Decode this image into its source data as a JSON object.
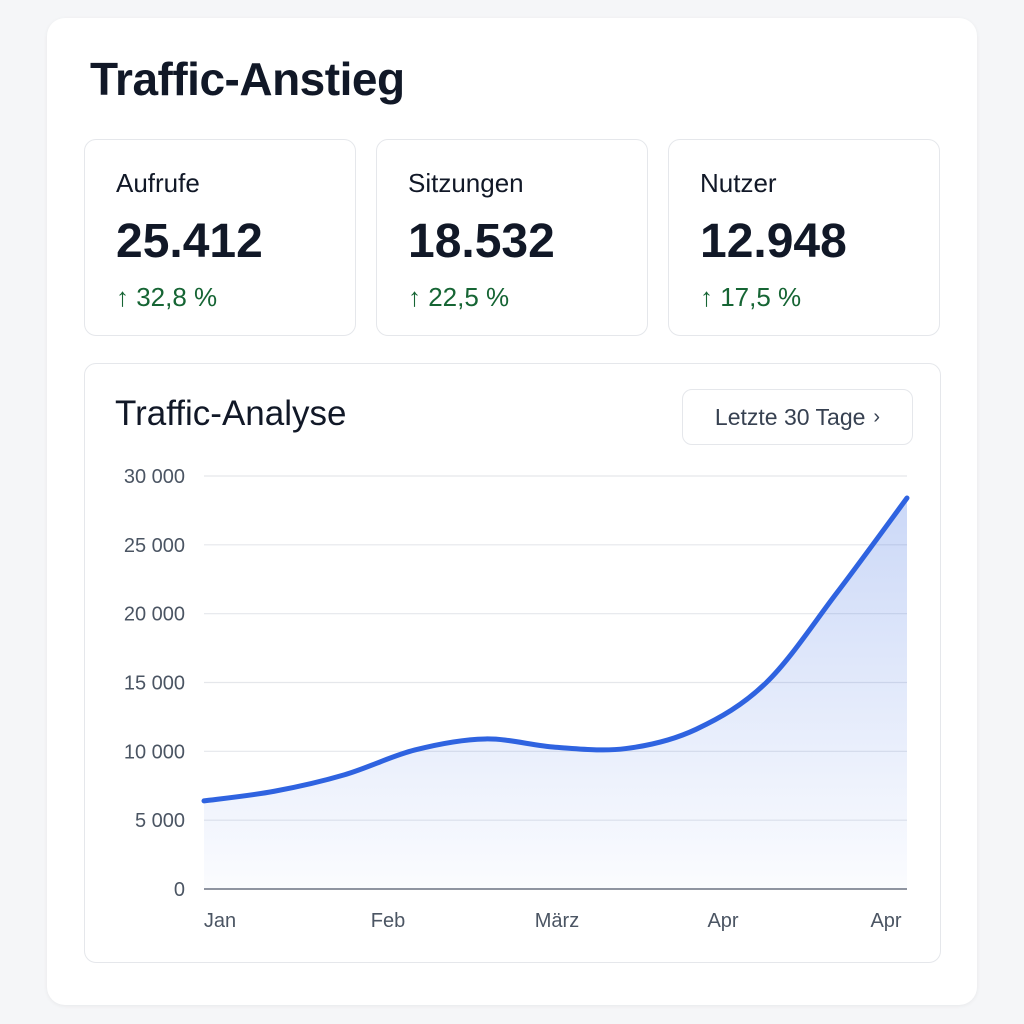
{
  "title": "Traffic-Anstieg",
  "kpis": [
    {
      "label": "Aufrufe",
      "value": "25.412",
      "change": "↑ 32,8 %"
    },
    {
      "label": "Sitzungen",
      "value": "18.532",
      "change": "↑ 22,5 %"
    },
    {
      "label": "Nutzer",
      "value": "12.948",
      "change": "↑ 17,5 %"
    }
  ],
  "colors": {
    "line": "#2f63e0",
    "positive": "#166534"
  },
  "chart_card": {
    "title": "Traffic-Analyse",
    "range_label": "Letzte 30 Tage",
    "range_icon": "chevron-right-icon"
  },
  "chart_data": {
    "type": "area",
    "title": "Traffic-Analyse",
    "x_tick_labels": [
      "Jan",
      "Feb",
      "März",
      "Apr",
      "Apr"
    ],
    "y_tick_labels": [
      "0",
      "5 000",
      "10 000",
      "15 000",
      "20 000",
      "25 000",
      "30 000"
    ],
    "y_ticks": [
      0,
      5000,
      10000,
      15000,
      20000,
      25000,
      30000
    ],
    "ylim": [
      0,
      30000
    ],
    "grid": true,
    "series": [
      {
        "values": [
          6400,
          7100,
          8300,
          10100,
          10900,
          10300,
          10200,
          11600,
          15000,
          21500,
          28400
        ]
      }
    ]
  }
}
